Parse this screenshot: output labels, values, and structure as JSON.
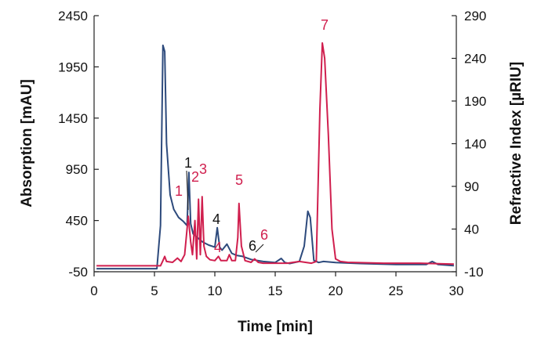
{
  "chart_data": {
    "type": "line",
    "title": "",
    "xlabel": "Time [min]",
    "ylabel_left": "Absorption [mAU]",
    "ylabel_right": "Refractive Index [µRIU]",
    "xlim": [
      0,
      30
    ],
    "ylim_left": [
      -50,
      2450
    ],
    "ylim_right": [
      -10,
      290
    ],
    "xticks": [
      "0",
      "5",
      "10",
      "15",
      "20",
      "25",
      "30"
    ],
    "yticks_left": [
      "-50",
      "450",
      "950",
      "1450",
      "1950",
      "2450"
    ],
    "yticks_right": [
      "-10",
      "40",
      "90",
      "140",
      "190",
      "240",
      "290"
    ],
    "grid": false,
    "colors": {
      "absorption": "#2d4a7c",
      "refractive_index": "#d01f4e",
      "black_label": "#111111"
    },
    "series": [
      {
        "axis": "left",
        "color": "#2d4a7c",
        "x": [
          0.2,
          5.2,
          5.5,
          5.7,
          5.85,
          6.0,
          6.3,
          6.6,
          7.0,
          7.4,
          7.7,
          7.85,
          8.0,
          8.2,
          8.5,
          9.0,
          9.5,
          10.0,
          10.2,
          10.4,
          10.6,
          11.0,
          11.4,
          11.8,
          12.3,
          13.0,
          14.0,
          15.0,
          15.5,
          15.8,
          16.2,
          17.0,
          17.4,
          17.7,
          17.9,
          18.2,
          18.6,
          19.0,
          20.0,
          22.0,
          25.0,
          27.5,
          28.0,
          28.5,
          29.8
        ],
        "y": [
          -20,
          -20,
          400,
          2160,
          2100,
          1200,
          700,
          560,
          480,
          440,
          400,
          920,
          420,
          320,
          290,
          240,
          210,
          190,
          380,
          190,
          160,
          220,
          130,
          110,
          100,
          70,
          50,
          40,
          80,
          40,
          30,
          50,
          200,
          540,
          480,
          60,
          40,
          50,
          40,
          30,
          20,
          20,
          50,
          20,
          10
        ]
      },
      {
        "axis": "right",
        "color": "#d01f4e",
        "x": [
          0.2,
          5.5,
          5.7,
          5.85,
          6.0,
          6.5,
          6.9,
          7.2,
          7.5,
          7.8,
          8.0,
          8.15,
          8.35,
          8.5,
          8.65,
          8.8,
          8.95,
          9.1,
          9.3,
          9.6,
          10.0,
          10.3,
          10.5,
          11.0,
          11.2,
          11.4,
          11.7,
          11.9,
          12.0,
          12.2,
          12.5,
          13.0,
          13.3,
          13.6,
          14.0,
          16.0,
          17.0,
          18.0,
          18.4,
          18.7,
          18.9,
          19.1,
          19.4,
          19.7,
          20.0,
          20.4,
          21.0,
          24.0,
          27.0,
          29.8
        ],
        "y": [
          -3,
          -3,
          3,
          8,
          2,
          1,
          6,
          2,
          10,
          55,
          25,
          10,
          50,
          5,
          75,
          10,
          78,
          20,
          8,
          4,
          3,
          8,
          3,
          3,
          10,
          3,
          3,
          30,
          70,
          20,
          3,
          1,
          5,
          1,
          0,
          0,
          2,
          0,
          2,
          180,
          258,
          240,
          150,
          40,
          5,
          2,
          1,
          0,
          0,
          -1
        ]
      }
    ],
    "annotations": [
      {
        "text": "1",
        "color": "#111111"
      },
      {
        "text": "1",
        "color": "#d01f4e"
      },
      {
        "text": "2",
        "color": "#d01f4e"
      },
      {
        "text": "3",
        "color": "#d01f4e"
      },
      {
        "text": "4",
        "color": "#111111"
      },
      {
        "text": "4",
        "color": "#d01f4e"
      },
      {
        "text": "5",
        "color": "#d01f4e"
      },
      {
        "text": "6",
        "color": "#111111"
      },
      {
        "text": "6",
        "color": "#d01f4e"
      },
      {
        "text": "7",
        "color": "#d01f4e"
      }
    ]
  }
}
